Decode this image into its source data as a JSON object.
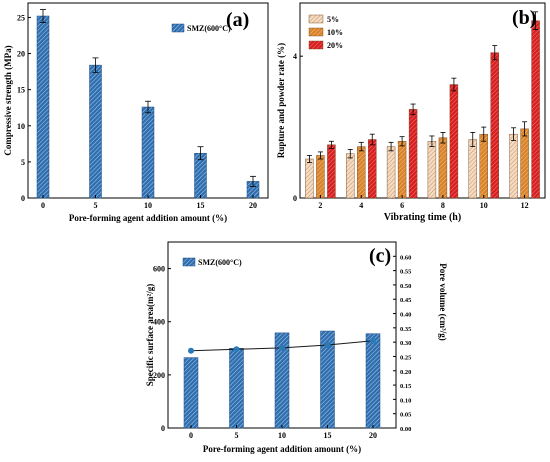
{
  "chart_data": [
    {
      "panel": "(a)",
      "type": "bar",
      "categories": [
        "0",
        "5",
        "10",
        "15",
        "20"
      ],
      "series": [
        {
          "name": "SMZ(600°C)",
          "values": [
            25.2,
            18.4,
            12.6,
            6.2,
            2.3
          ],
          "errors": [
            0.9,
            1.0,
            0.8,
            0.9,
            0.7
          ],
          "color": "#2f6fb0"
        }
      ],
      "xlabel": "Pore-forming agent addition amount (%)",
      "ylabel": "Compressive strength (MPa)",
      "ylim": [
        0,
        27
      ],
      "yticks": [
        0,
        5,
        10,
        15,
        20,
        25
      ],
      "legend": "top-right"
    },
    {
      "panel": "(b)",
      "type": "bar",
      "categories": [
        "2",
        "4",
        "6",
        "8",
        "10",
        "12"
      ],
      "series": [
        {
          "name": "5%",
          "values": [
            1.1,
            1.25,
            1.45,
            1.6,
            1.65,
            1.8
          ],
          "errors": [
            0.1,
            0.12,
            0.12,
            0.15,
            0.2,
            0.18
          ],
          "color": "#e8c4a0"
        },
        {
          "name": "10%",
          "values": [
            1.2,
            1.45,
            1.6,
            1.7,
            1.8,
            1.95
          ],
          "errors": [
            0.1,
            0.12,
            0.13,
            0.15,
            0.2,
            0.2
          ],
          "color": "#d9832a"
        },
        {
          "name": "20%",
          "values": [
            1.5,
            1.65,
            2.5,
            3.2,
            4.1,
            5.0
          ],
          "errors": [
            0.1,
            0.15,
            0.15,
            0.18,
            0.2,
            0.25
          ],
          "color": "#d81e1e"
        }
      ],
      "xlabel": "Vibrating time (h)",
      "ylabel": "Rupture and powder rate (%)",
      "ylim": [
        0,
        5.5
      ],
      "yticks": [
        0,
        4
      ],
      "xlim": [
        1,
        13
      ],
      "xticks": [
        2,
        4,
        6,
        8,
        10,
        12
      ],
      "legend": "top-left"
    },
    {
      "panel": "(c)",
      "type": "bar",
      "categories": [
        "0",
        "5",
        "10",
        "15",
        "20"
      ],
      "series": [
        {
          "name": "SMZ(600°C)",
          "values": [
            265,
            300,
            358,
            365,
            355
          ],
          "color": "#2f6fb0",
          "axis": "left"
        },
        {
          "values": [
            0.27,
            0.275,
            0.28,
            0.29,
            0.305
          ],
          "color": "#2a7ab8",
          "axis": "right",
          "type": "line"
        }
      ],
      "xlabel": "Pore-forming agent addition amount (%)",
      "ylabel": "Specific surface area(m²/g)",
      "y2label": "Pore volume (cm³/g)",
      "ylim": [
        0,
        700
      ],
      "yticks": [
        0,
        200,
        400,
        600
      ],
      "y2lim": [
        0,
        0.65
      ],
      "y2ticks": [
        "0.00",
        "0.05",
        "0.10",
        "0.15",
        "0.20",
        "0.25",
        "0.30",
        "0.35",
        "0.40",
        "0.45",
        "0.50",
        "0.55",
        "0.60"
      ],
      "legend": "top-left"
    }
  ]
}
